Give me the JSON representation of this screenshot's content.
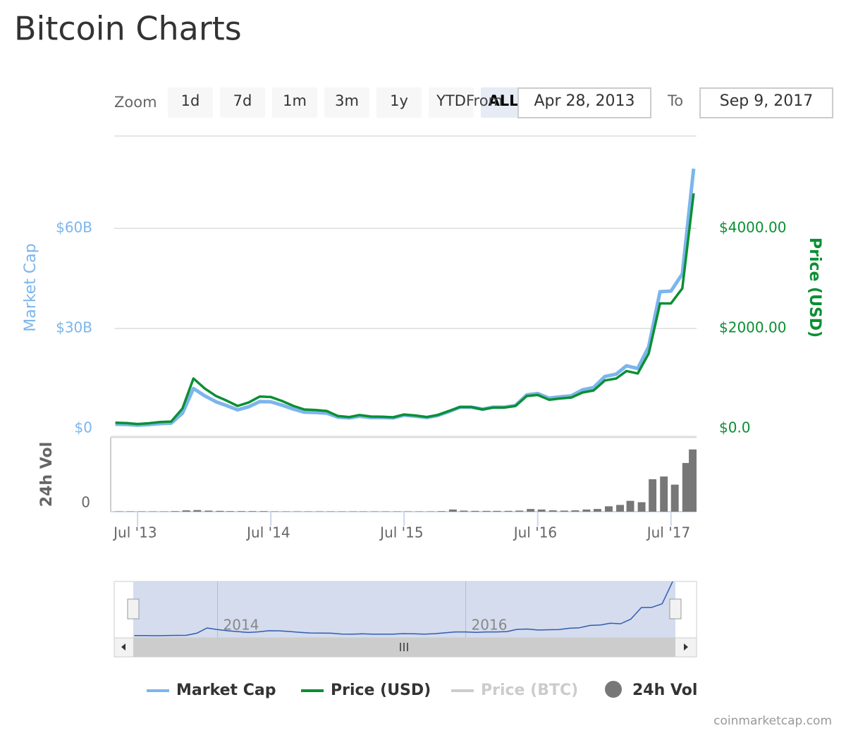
{
  "title": "Bitcoin Charts",
  "range_selector": {
    "label": "Zoom",
    "buttons": [
      "1d",
      "7d",
      "1m",
      "3m",
      "1y",
      "YTD",
      "ALL"
    ],
    "from_label": "From",
    "from": "Apr 28, 2013",
    "to_label": "To",
    "to": "Sep 9, 2017"
  },
  "credit": "coinmarketcap.com",
  "chart_data": [
    {
      "type": "line",
      "x": [
        "2013-05",
        "2013-06",
        "2013-07",
        "2013-08",
        "2013-09",
        "2013-10",
        "2013-11",
        "2013-12",
        "2014-01",
        "2014-02",
        "2014-03",
        "2014-04",
        "2014-05",
        "2014-06",
        "2014-07",
        "2014-08",
        "2014-09",
        "2014-10",
        "2014-11",
        "2014-12",
        "2015-01",
        "2015-02",
        "2015-03",
        "2015-04",
        "2015-05",
        "2015-06",
        "2015-07",
        "2015-08",
        "2015-09",
        "2015-10",
        "2015-11",
        "2015-12",
        "2016-01",
        "2016-02",
        "2016-03",
        "2016-04",
        "2016-05",
        "2016-06",
        "2016-07",
        "2016-08",
        "2016-09",
        "2016-10",
        "2016-11",
        "2016-12",
        "2017-01",
        "2017-02",
        "2017-03",
        "2017-04",
        "2017-05",
        "2017-06",
        "2017-07",
        "2017-08",
        "2017-09"
      ],
      "xlim": [
        "2013-04-28",
        "2017-09-09"
      ],
      "xticks": [
        {
          "value": "2013-07",
          "label": "Jul '13"
        },
        {
          "value": "2014-07",
          "label": "Jul '14"
        },
        {
          "value": "2015-07",
          "label": "Jul '15"
        },
        {
          "value": "2016-07",
          "label": "Jul '16"
        },
        {
          "value": "2017-07",
          "label": "Jul '17"
        }
      ],
      "y_label": "Market Cap",
      "y2_label": "Price (USD)",
      "ylim": [
        0,
        90
      ],
      "yticks": [
        {
          "value": 0,
          "label": "$0"
        },
        {
          "value": 30,
          "label": "$30B"
        },
        {
          "value": 60,
          "label": "$60B"
        }
      ],
      "y2lim": [
        0,
        6000
      ],
      "y2ticks": [
        {
          "value": 0,
          "label": "$0.0"
        },
        {
          "value": 2000,
          "label": "$2000.00"
        },
        {
          "value": 4000,
          "label": "$4000.00"
        }
      ],
      "grid": true,
      "series": [
        {
          "name": "Market Cap",
          "color": "#7cb5ec",
          "axis": "y",
          "values": [
            1.28,
            1.22,
            1.0,
            1.18,
            1.47,
            1.6,
            4.6,
            12.0,
            9.8,
            8.0,
            6.9,
            5.6,
            6.5,
            8.1,
            8.0,
            7.0,
            5.8,
            4.9,
            4.8,
            4.6,
            3.4,
            3.2,
            3.7,
            3.3,
            3.3,
            3.2,
            4.0,
            3.7,
            3.3,
            3.9,
            5.1,
            6.4,
            6.4,
            5.8,
            6.4,
            6.4,
            6.9,
            10.1,
            10.5,
            9.1,
            9.5,
            9.8,
            11.6,
            12.3,
            15.6,
            16.3,
            18.8,
            18.0,
            24.6,
            41.0,
            41.2,
            46.3,
            77.9
          ]
        },
        {
          "name": "Price (USD)",
          "color": "#0a8f33",
          "axis": "y2",
          "values": [
            115,
            110,
            90,
            105,
            130,
            140,
            400,
            1000,
            800,
            650,
            560,
            450,
            520,
            640,
            630,
            550,
            450,
            380,
            370,
            350,
            250,
            230,
            270,
            240,
            235,
            225,
            280,
            260,
            230,
            270,
            350,
            430,
            430,
            380,
            420,
            420,
            450,
            650,
            670,
            575,
            600,
            620,
            720,
            760,
            960,
            1000,
            1150,
            1100,
            1500,
            2500,
            2500,
            2800,
            4700
          ]
        }
      ],
      "hidden_series": [
        {
          "name": "Price (BTC)",
          "color": "#cccccc"
        }
      ],
      "navigator_xticks": [
        {
          "value": "2014-01",
          "label": "2014"
        },
        {
          "value": "2016-01",
          "label": "2016"
        }
      ]
    },
    {
      "type": "bar",
      "y_label": "24h Vol",
      "ylim": [
        0,
        2.5
      ],
      "yticks": [
        0
      ],
      "series": [
        {
          "name": "24h Vol",
          "color": "#777777",
          "values": [
            0.01,
            0.01,
            0.01,
            0.01,
            0.01,
            0.02,
            0.05,
            0.06,
            0.04,
            0.03,
            0.02,
            0.02,
            0.02,
            0.02,
            0.01,
            0.01,
            0.01,
            0.01,
            0.01,
            0.01,
            0.01,
            0.01,
            0.01,
            0.01,
            0.01,
            0.01,
            0.01,
            0.01,
            0.01,
            0.02,
            0.08,
            0.04,
            0.03,
            0.03,
            0.03,
            0.03,
            0.04,
            0.1,
            0.08,
            0.05,
            0.04,
            0.05,
            0.08,
            0.1,
            0.2,
            0.25,
            0.4,
            0.35,
            1.2,
            1.3,
            1.0,
            1.8,
            2.3
          ]
        }
      ]
    }
  ]
}
